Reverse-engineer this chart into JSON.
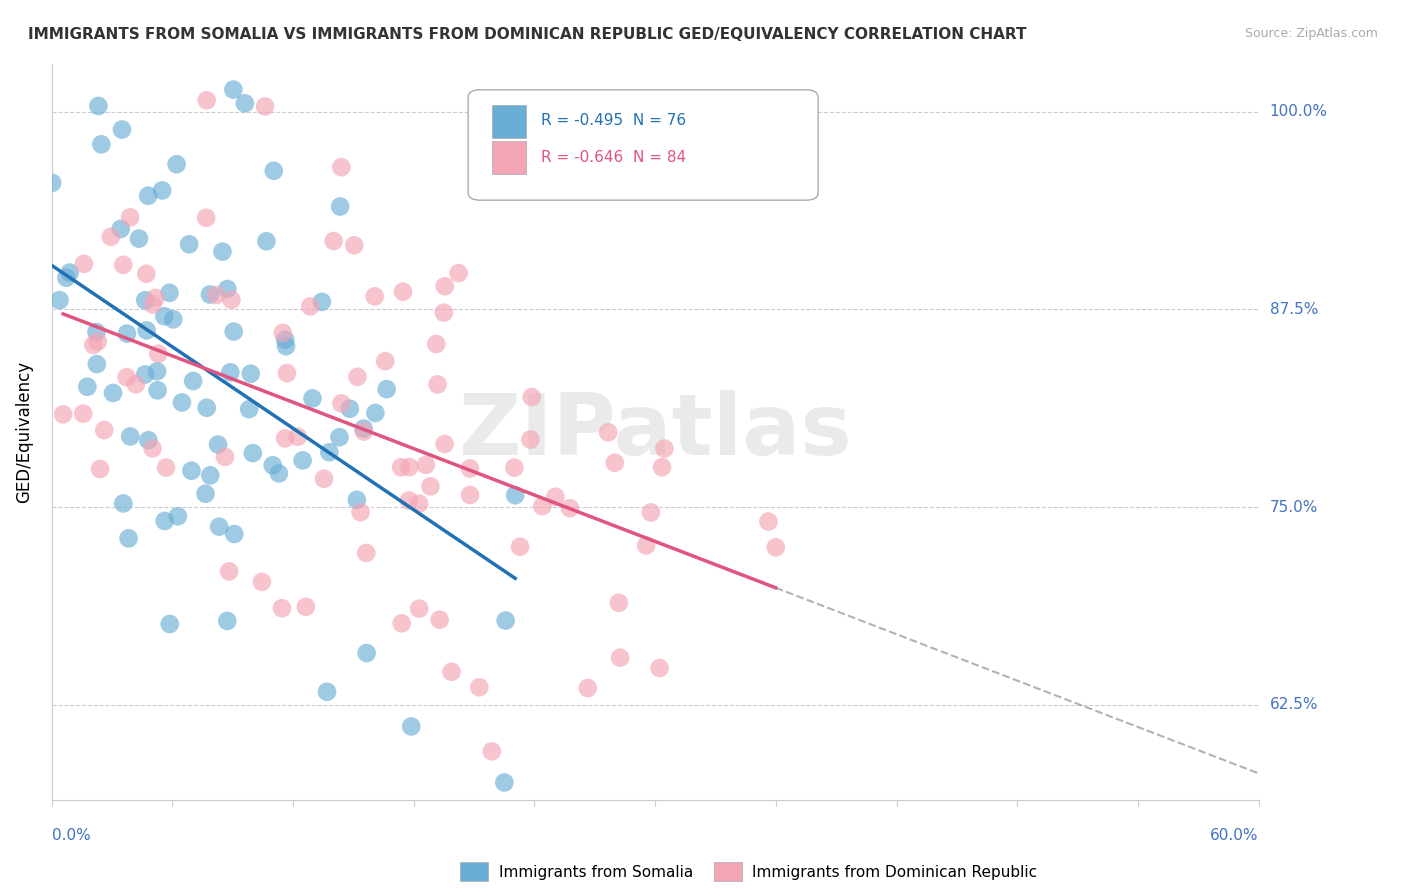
{
  "title": "IMMIGRANTS FROM SOMALIA VS IMMIGRANTS FROM DOMINICAN REPUBLIC GED/EQUIVALENCY CORRELATION CHART",
  "source": "Source: ZipAtlas.com",
  "ylabel": "GED/Equivalency",
  "xlim": [
    0.0,
    0.6
  ],
  "ylim": [
    0.565,
    1.03
  ],
  "legend_R1": "-0.495",
  "legend_N1": "76",
  "legend_R2": "-0.646",
  "legend_N2": "84",
  "color_somalia": "#6aaed6",
  "color_somalia_dark": "#2171b5",
  "color_dr": "#f4a5b5",
  "color_dr_dark": "#e05580",
  "watermark": "ZIPatlas",
  "ytick_vals": [
    1.0,
    0.875,
    0.75,
    0.625
  ],
  "ytick_labels": [
    "100.0%",
    "87.5%",
    "75.0%",
    "62.5%"
  ]
}
